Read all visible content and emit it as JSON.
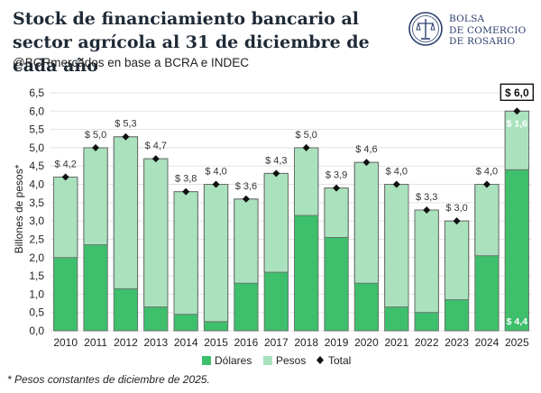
{
  "header": {
    "title": "Stock de financiamiento bancario al sector agrícola al 31 de diciembre de cada año",
    "subtitle": "@BCRmercados  en base a BCRA e INDEC",
    "footnote": "* Pesos constantes de diciembre de 2025."
  },
  "logo": {
    "line1": "BOLSA",
    "line2": "DE COMERCIO",
    "line3": "DE ROSARIO",
    "icon": "bcr-seal-icon"
  },
  "colors": {
    "dolares": "#3dbf6c",
    "pesos": "#a9e2bd",
    "total": "#111111"
  },
  "chart_data": {
    "type": "bar",
    "stacked": true,
    "categories": [
      "2010",
      "2011",
      "2012",
      "2013",
      "2014",
      "2015",
      "2016",
      "2017",
      "2018",
      "2019",
      "2020",
      "2021",
      "2022",
      "2023",
      "2024",
      "2025"
    ],
    "series": [
      {
        "name": "Dólares",
        "values": [
          2.0,
          2.35,
          1.15,
          0.65,
          0.45,
          0.25,
          1.3,
          1.6,
          3.15,
          2.55,
          1.3,
          0.65,
          0.5,
          0.85,
          2.05,
          4.4
        ]
      },
      {
        "name": "Pesos",
        "values": [
          2.2,
          2.65,
          4.15,
          4.05,
          3.35,
          3.75,
          2.3,
          2.7,
          1.85,
          1.35,
          3.3,
          3.35,
          2.8,
          2.15,
          1.95,
          1.6
        ]
      },
      {
        "name": "Total",
        "values": [
          4.2,
          5.0,
          5.3,
          4.7,
          3.8,
          4.0,
          3.6,
          4.3,
          5.0,
          3.9,
          4.6,
          4.0,
          3.3,
          3.0,
          4.0,
          6.0
        ]
      }
    ],
    "total_labels": [
      "$ 4,2",
      "$ 5,0",
      "$ 5,3",
      "$ 4,7",
      "$ 3,8",
      "$ 4,0",
      "$ 3,6",
      "$ 4,3",
      "$ 5,0",
      "$ 3,9",
      "$ 4,6",
      "$ 4,0",
      "$ 3,3",
      "$ 3,0",
      "$ 4,0",
      "$ 6,0"
    ],
    "inner_labels": {
      "dolares_2025": "$ 4,4",
      "pesos_2025": "$ 1,6"
    },
    "ylabel": "Billones de pesos*",
    "ylim": [
      0,
      6.5
    ],
    "yticks": [
      "0,0",
      "0,5",
      "1,0",
      "1,5",
      "2,0",
      "2,5",
      "3,0",
      "3,5",
      "4,0",
      "4,5",
      "5,0",
      "5,5",
      "6,0",
      "6,5"
    ],
    "grid": true,
    "legend_position": "bottom"
  }
}
